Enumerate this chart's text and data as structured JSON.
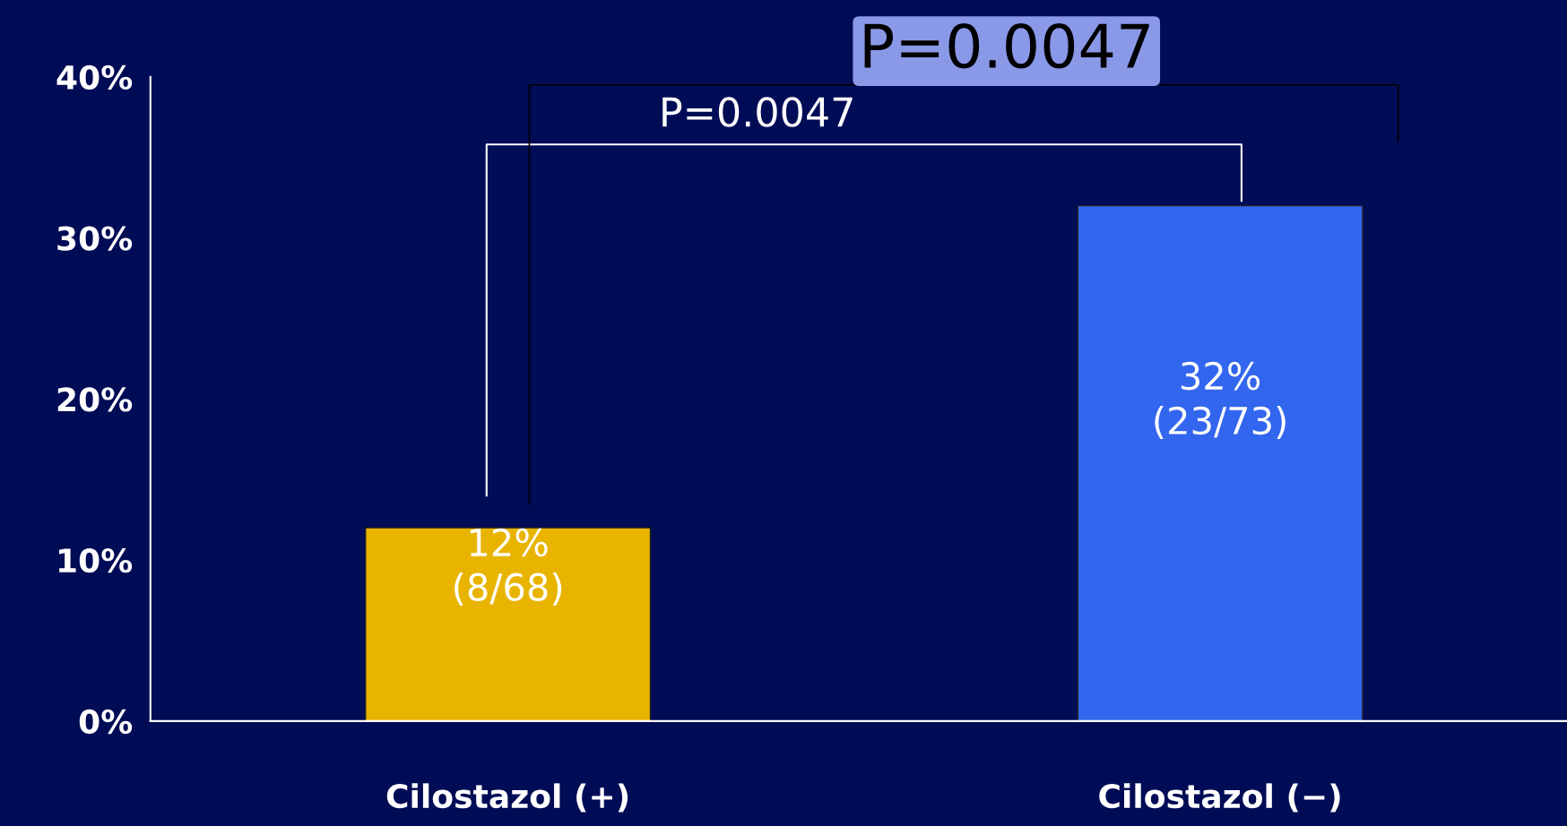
{
  "chart_data": {
    "type": "bar",
    "categories": [
      "Cilostazol (+)",
      "Cilostazol (−)"
    ],
    "values": [
      12,
      32
    ],
    "colors": [
      "#e8b400",
      "#3366ee"
    ],
    "value_labels": [
      "12%\n(8/68)",
      "32%\n(23/73)"
    ],
    "ylim": [
      0,
      40
    ],
    "yticks": [
      {
        "value": 0,
        "label": "0%"
      },
      {
        "value": 10,
        "label": "10%"
      },
      {
        "value": 20,
        "label": "20%"
      },
      {
        "value": 30,
        "label": "30%"
      },
      {
        "value": 40,
        "label": "40%"
      }
    ],
    "annotations": [
      "P=0.0047",
      "P=0.0047"
    ],
    "grid": false,
    "legend": false
  }
}
